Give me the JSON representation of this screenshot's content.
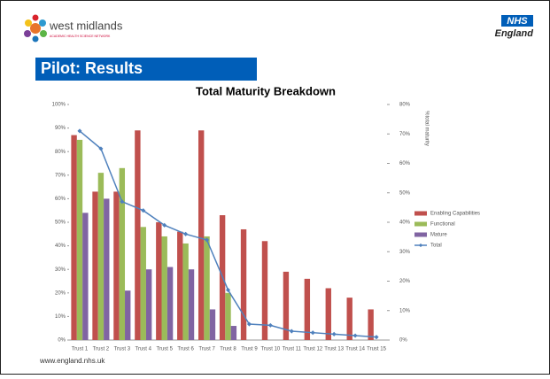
{
  "slide": {
    "logo_text": "west midlands",
    "logo_tagline": "ACADEMIC HEALTH SCIENCE NETWORK",
    "nhs_badge": "NHS",
    "nhs_name": "England",
    "heading": "Pilot: Results",
    "footer": "www.england.nhs.uk"
  },
  "chart_data": {
    "type": "bar",
    "title": "Total Maturity Breakdown",
    "y2_label": "%total maturity",
    "categories": [
      "Trust 1",
      "Trust 2",
      "Trust 3",
      "Trust 4",
      "Trust 5",
      "Trust 6",
      "Trust 7",
      "Trust 8",
      "Trust 9",
      "Trust 10",
      "Trust 11",
      "Trust 12",
      "Trust 13",
      "Trust 14",
      "Trust 15"
    ],
    "series": [
      {
        "name": "Enabling Capabilities",
        "color": "#c0504d",
        "values": [
          87,
          63,
          63,
          89,
          50,
          46,
          89,
          53,
          47,
          42,
          29,
          26,
          22,
          18,
          13
        ]
      },
      {
        "name": "Functional",
        "color": "#9bbb59",
        "values": [
          85,
          71,
          73,
          48,
          44,
          41,
          44,
          20,
          0,
          0,
          0,
          0,
          0,
          0,
          0
        ]
      },
      {
        "name": "Mature",
        "color": "#8064a2",
        "values": [
          54,
          60,
          21,
          30,
          31,
          30,
          13,
          6,
          0,
          0,
          0,
          0,
          0,
          0,
          0
        ]
      },
      {
        "name": "Total",
        "color": "#4f81bd",
        "axis": "y2",
        "type": "line",
        "values": [
          71,
          65,
          47,
          44,
          39,
          36,
          34,
          17,
          5.4,
          5,
          3,
          2.5,
          2,
          1.5,
          1
        ]
      }
    ],
    "ylim": [
      0,
      100
    ],
    "yticks": [
      {
        "value": 0,
        "label": "0%"
      },
      {
        "value": 10,
        "label": "10%"
      },
      {
        "value": 20,
        "label": "20%"
      },
      {
        "value": 30,
        "label": "30%"
      },
      {
        "value": 40,
        "label": "40%"
      },
      {
        "value": 50,
        "label": "50%"
      },
      {
        "value": 60,
        "label": "60%"
      },
      {
        "value": 70,
        "label": "70%"
      },
      {
        "value": 80,
        "label": "80%"
      },
      {
        "value": 90,
        "label": "90%"
      },
      {
        "value": 100,
        "label": "100%"
      }
    ],
    "y2lim": [
      0,
      80
    ],
    "y2ticks": [
      {
        "value": 0,
        "label": "0%"
      },
      {
        "value": 10,
        "label": "10%"
      },
      {
        "value": 20,
        "label": "20%"
      },
      {
        "value": 30,
        "label": "30%"
      },
      {
        "value": 40,
        "label": "40%"
      },
      {
        "value": 50,
        "label": "50%"
      },
      {
        "value": 60,
        "label": "60%"
      },
      {
        "value": 70,
        "label": "70%"
      },
      {
        "value": 80,
        "label": "80%"
      }
    ],
    "legend": "right"
  }
}
